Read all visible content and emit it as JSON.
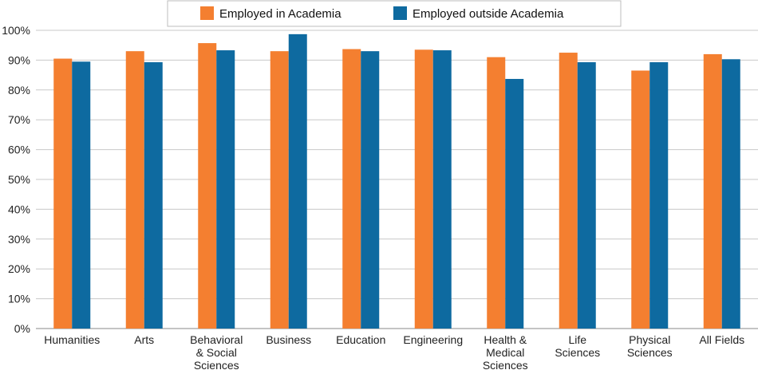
{
  "chart_data": {
    "type": "bar",
    "title": "",
    "xlabel": "",
    "ylabel": "",
    "ylim": [
      0,
      100
    ],
    "yticks": [
      "0%",
      "10%",
      "20%",
      "30%",
      "40%",
      "50%",
      "60%",
      "70%",
      "80%",
      "90%",
      "100%"
    ],
    "grid": true,
    "legend_position": "top-center",
    "categories": [
      [
        "Humanities"
      ],
      [
        "Arts"
      ],
      [
        "Behavioral",
        "& Social",
        "Sciences"
      ],
      [
        "Business"
      ],
      [
        "Education"
      ],
      [
        "Engineering"
      ],
      [
        "Health &",
        "Medical",
        "Sciences"
      ],
      [
        "Life",
        "Sciences"
      ],
      [
        "Physical",
        "Sciences"
      ],
      [
        "All Fields"
      ]
    ],
    "series": [
      {
        "name": "Employed in Academia",
        "color": "#f47f30",
        "values": [
          90.5,
          93,
          95.7,
          93,
          93.7,
          93.5,
          91,
          92.5,
          86.5,
          92
        ]
      },
      {
        "name": "Employed outside Academia",
        "color": "#0e6aa0",
        "values": [
          89.5,
          89.3,
          93.3,
          98.7,
          93,
          93.3,
          83.7,
          89.3,
          89.3,
          90.3
        ]
      }
    ]
  }
}
